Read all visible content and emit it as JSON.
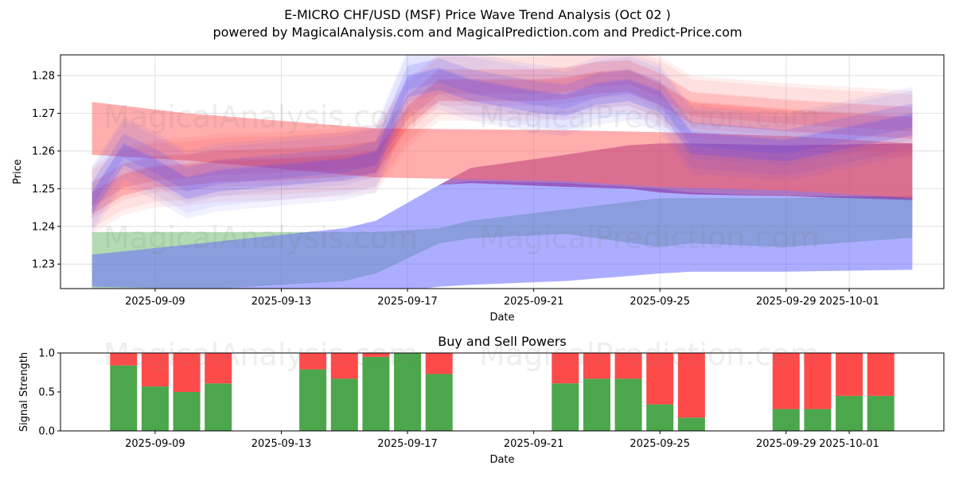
{
  "header": {
    "title": "E-MICRO CHF/USD (MSF) Price Wave Trend Analysis (Oct 02 )",
    "subtitle": "powered by MagicalAnalysis.com and MagicalPrediction.com and Predict-Price.com"
  },
  "watermarks": [
    "MagicalAnalysis.com",
    "MagicalPrediction.com"
  ],
  "chart_data": [
    {
      "type": "area",
      "title": "",
      "xlabel": "Date",
      "ylabel": "Price",
      "x_range": [
        "2025-09-06",
        "2025-10-04"
      ],
      "ylim": [
        1.2235,
        1.2855
      ],
      "x_ticks": [
        "2025-09-09",
        "2025-09-13",
        "2025-09-17",
        "2025-09-21",
        "2025-09-25",
        "2025-09-29",
        "2025-10-01"
      ],
      "y_ticks": [
        1.23,
        1.24,
        1.25,
        1.26,
        1.27,
        1.28
      ],
      "grid": true,
      "colors": {
        "red": "#ff2a2a",
        "blue": "#3a3aff",
        "green": "#54b054",
        "purple": "#8a3aa8",
        "slate": "#5b7f98",
        "brown": "#b08040"
      },
      "background_bands": [
        {
          "name": "green-band",
          "color": "#54b054",
          "opacity": 0.45,
          "x": [
            "2025-09-07",
            "2025-09-15",
            "2025-09-16",
            "2025-09-18",
            "2025-09-19",
            "2025-09-22",
            "2025-09-25",
            "2025-09-26",
            "2025-09-29",
            "2025-10-03"
          ],
          "upper": [
            1.2385,
            1.2385,
            1.2385,
            1.2395,
            1.2415,
            1.2445,
            1.2475,
            1.2475,
            1.2475,
            1.248
          ],
          "lower": [
            1.2215,
            1.2255,
            1.2275,
            1.2355,
            1.2368,
            1.238,
            1.2345,
            1.2355,
            1.2345,
            1.237
          ]
        },
        {
          "name": "blue-band",
          "color": "#6a6aff",
          "opacity": 0.55,
          "x": [
            "2025-09-07",
            "2025-09-15",
            "2025-09-16",
            "2025-09-18",
            "2025-09-19",
            "2025-09-22",
            "2025-09-25",
            "2025-09-26",
            "2025-09-29",
            "2025-10-03"
          ],
          "upper": [
            1.2325,
            1.2395,
            1.2415,
            1.251,
            1.252,
            1.2515,
            1.25,
            1.249,
            1.248,
            1.248
          ],
          "lower": [
            1.224,
            1.2225,
            1.222,
            1.224,
            1.2245,
            1.2255,
            1.2275,
            1.228,
            1.228,
            1.2285
          ]
        },
        {
          "name": "purple-band",
          "color": "#8a3aa8",
          "opacity": 0.7,
          "x": [
            "2025-09-18",
            "2025-09-19",
            "2025-09-22",
            "2025-09-24",
            "2025-09-25",
            "2025-09-26",
            "2025-09-29",
            "2025-10-03"
          ],
          "upper": [
            1.251,
            1.2555,
            1.259,
            1.2615,
            1.262,
            1.262,
            1.2615,
            1.262
          ],
          "lower": [
            1.251,
            1.2515,
            1.2505,
            1.25,
            1.249,
            1.2485,
            1.248,
            1.247
          ]
        },
        {
          "name": "red-band",
          "color": "#ff6a6a",
          "opacity": 0.55,
          "x": [
            "2025-09-07",
            "2025-09-10",
            "2025-09-16",
            "2025-09-22",
            "2025-09-25",
            "2025-09-29",
            "2025-10-03"
          ],
          "upper": [
            1.273,
            1.27,
            1.266,
            1.2655,
            1.265,
            1.264,
            1.262
          ],
          "lower": [
            1.259,
            1.2575,
            1.253,
            1.252,
            1.2505,
            1.2495,
            1.2475
          ]
        }
      ],
      "series": [
        {
          "name": "red-wave",
          "color": "#ff2a2a",
          "x": [
            "2025-09-07",
            "2025-09-08",
            "2025-09-09",
            "2025-09-10",
            "2025-09-11",
            "2025-09-13",
            "2025-09-15",
            "2025-09-16",
            "2025-09-17",
            "2025-09-18",
            "2025-09-19",
            "2025-09-21",
            "2025-09-22",
            "2025-09-23",
            "2025-09-24",
            "2025-09-25",
            "2025-09-26",
            "2025-09-29",
            "2025-10-03"
          ],
          "values": [
            1.247,
            1.252,
            1.254,
            1.2545,
            1.2555,
            1.256,
            1.257,
            1.258,
            1.27,
            1.277,
            1.277,
            1.277,
            1.2775,
            1.279,
            1.2795,
            1.276,
            1.271,
            1.269,
            1.267
          ]
        },
        {
          "name": "blue-wave",
          "color": "#4a4aff",
          "x": [
            "2025-09-07",
            "2025-09-08",
            "2025-09-09",
            "2025-09-10",
            "2025-09-11",
            "2025-09-13",
            "2025-09-15",
            "2025-09-16",
            "2025-09-17",
            "2025-09-18",
            "2025-09-19",
            "2025-09-21",
            "2025-09-22",
            "2025-09-23",
            "2025-09-24",
            "2025-09-25",
            "2025-09-26",
            "2025-09-29",
            "2025-10-03"
          ],
          "values": [
            1.247,
            1.26,
            1.256,
            1.251,
            1.253,
            1.2545,
            1.256,
            1.258,
            1.278,
            1.28,
            1.277,
            1.274,
            1.273,
            1.276,
            1.277,
            1.274,
            1.263,
            1.261,
            1.268
          ]
        }
      ]
    },
    {
      "type": "bar",
      "title": "Buy and Sell Powers",
      "xlabel": "Date",
      "ylabel": "Signal Strength",
      "ylim": [
        0.0,
        1.0
      ],
      "y_ticks": [
        "0.0",
        "0.5",
        "1.0"
      ],
      "x_ticks": [
        "2025-09-09",
        "2025-09-13",
        "2025-09-17",
        "2025-09-21",
        "2025-09-25",
        "2025-09-29",
        "2025-10-01"
      ],
      "colors": {
        "buy": "#4ca64c",
        "sell": "#ff4a4a"
      },
      "categories": [
        "2025-09-08",
        "2025-09-09",
        "2025-09-10",
        "2025-09-11",
        "2025-09-14",
        "2025-09-15",
        "2025-09-16",
        "2025-09-17",
        "2025-09-18",
        "2025-09-22",
        "2025-09-23",
        "2025-09-24",
        "2025-09-25",
        "2025-09-26",
        "2025-09-29",
        "2025-09-30",
        "2025-10-01",
        "2025-10-02"
      ],
      "series": [
        {
          "name": "Buy",
          "values": [
            0.84,
            0.57,
            0.5,
            0.61,
            0.79,
            0.67,
            0.95,
            1.0,
            0.73,
            0.61,
            0.67,
            0.67,
            0.34,
            0.17,
            0.28,
            0.28,
            0.45,
            0.45
          ]
        },
        {
          "name": "Sell",
          "values": [
            0.16,
            0.43,
            0.5,
            0.39,
            0.21,
            0.33,
            0.05,
            0.0,
            0.27,
            0.39,
            0.33,
            0.33,
            0.66,
            0.83,
            0.72,
            0.72,
            0.55,
            0.55
          ]
        }
      ]
    }
  ]
}
